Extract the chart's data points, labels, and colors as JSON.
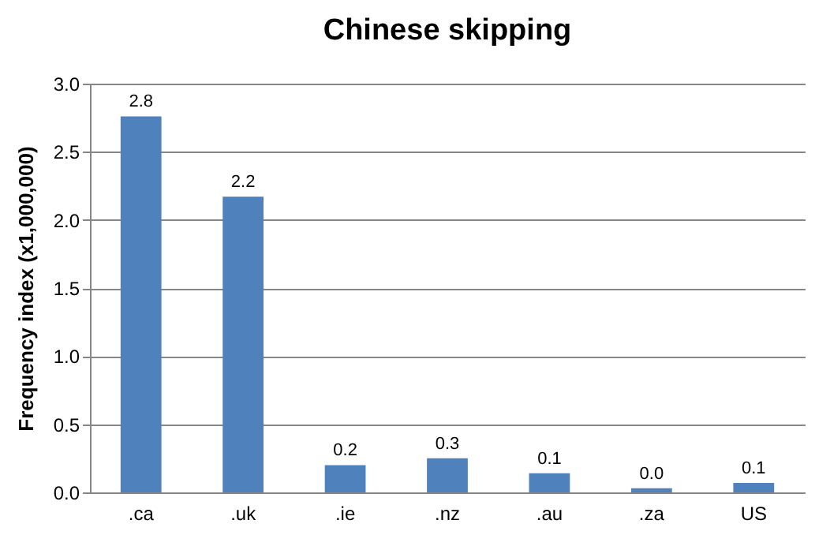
{
  "chart_data": {
    "type": "bar",
    "title": "Chinese skipping",
    "ylabel": "Frequency index (x1,000,000)",
    "categories": [
      ".ca",
      ".uk",
      ".ie",
      ".nz",
      ".au",
      ".za",
      "US"
    ],
    "values": [
      2.76,
      2.17,
      0.2,
      0.25,
      0.14,
      0.03,
      0.07
    ],
    "value_labels": [
      "2.8",
      "2.2",
      "0.2",
      "0.3",
      "0.1",
      "0.0",
      "0.1"
    ],
    "color": "#4f81bd",
    "ylim": [
      0,
      3
    ],
    "yticks": [
      {
        "value": 0,
        "label": "0.0"
      },
      0.5,
      {
        "value": 1,
        "label": "1.0"
      },
      1.5,
      {
        "value": 2,
        "label": "2.0"
      },
      2.5,
      {
        "value": 3,
        "label": "3.0"
      }
    ],
    "grid": "y"
  }
}
